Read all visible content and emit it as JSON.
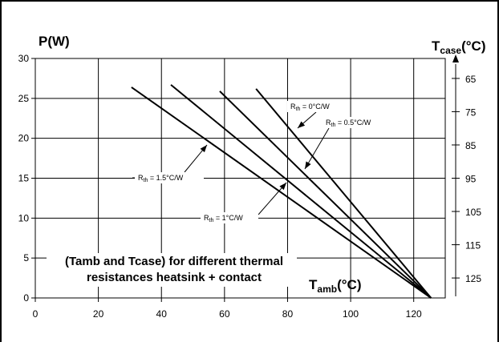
{
  "chart_data": {
    "type": "line",
    "title": "",
    "caption_lines": [
      "(Tamb and Tcase) for different thermal",
      "resistances heatsink + contact"
    ],
    "y_axis": {
      "title": "P(W)",
      "range": [
        0,
        30
      ],
      "ticks": [
        0,
        5,
        10,
        15,
        20,
        25,
        30
      ]
    },
    "x_axis": {
      "title_main": "T",
      "title_sub": "amb",
      "title_unit": "(°C)",
      "range": [
        0,
        130
      ],
      "ticks": [
        0,
        20,
        40,
        60,
        80,
        100,
        120
      ]
    },
    "y2_axis": {
      "title_main": "T",
      "title_sub": "case",
      "title_unit": "(°C)",
      "ticks": [
        "65",
        "75",
        "85",
        "95",
        "105",
        "115",
        "125"
      ]
    },
    "grid": true,
    "series": [
      {
        "label_main": "R",
        "label_sub": "th",
        "label_rest": " = 0°C/W",
        "points": [
          [
            70,
            26.2
          ],
          [
            125.5,
            0
          ]
        ]
      },
      {
        "label_main": "R",
        "label_sub": "th",
        "label_rest": " = 0.5°C/W",
        "points": [
          [
            58.5,
            25.9
          ],
          [
            125.5,
            0
          ]
        ]
      },
      {
        "label_main": "R",
        "label_sub": "th",
        "label_rest": " = 1°C/W",
        "points": [
          [
            43,
            26.7
          ],
          [
            125.5,
            0
          ]
        ]
      },
      {
        "label_main": "R",
        "label_sub": "th",
        "label_rest": " = 1.5°C/W",
        "points": [
          [
            30.5,
            26.4
          ],
          [
            125.5,
            0
          ]
        ]
      }
    ]
  }
}
